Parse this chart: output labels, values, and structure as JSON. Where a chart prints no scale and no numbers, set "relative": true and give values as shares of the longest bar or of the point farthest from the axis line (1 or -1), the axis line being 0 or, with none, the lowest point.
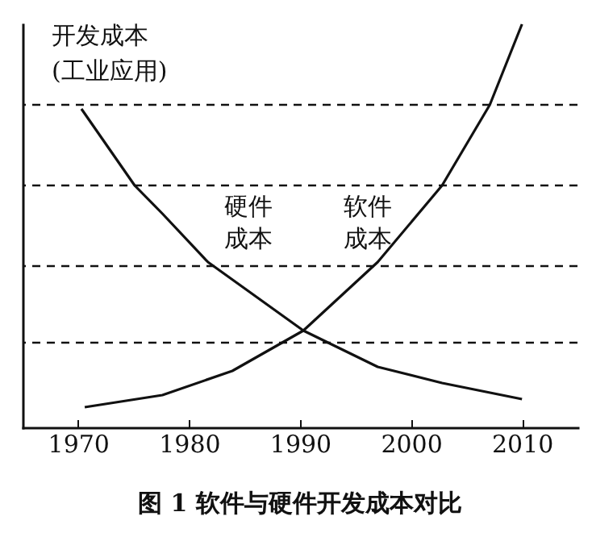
{
  "chart_data": {
    "type": "line",
    "title": "图 1  软件与硬件开发成本对比",
    "ylabel": "开发成本\n(工业应用)",
    "relative": true,
    "xlim": [
      1965,
      2015
    ],
    "xticks": [
      1970,
      1980,
      1990,
      2000,
      2010
    ],
    "series": [
      {
        "name": "硬件成本",
        "color": "#111111",
        "x": [
          1970.3,
          1975.1,
          1977.6,
          1981.7,
          1990.3,
          1997.0,
          2002.8,
          2010.0
        ],
        "values": [
          0.79,
          0.6,
          0.53,
          0.41,
          0.24,
          0.15,
          0.11,
          0.07
        ]
      },
      {
        "name": "软件成本",
        "color": "#111111",
        "x": [
          1970.6,
          1977.6,
          1983.9,
          1990.3,
          1997.0,
          2002.8,
          2007.1,
          2010.0
        ],
        "values": [
          0.05,
          0.08,
          0.14,
          0.24,
          0.41,
          0.6,
          0.8,
          1.0
        ]
      }
    ],
    "ref_lines": [
      {
        "axis": "y",
        "value": 0.8,
        "line_style": "dashed",
        "color": "#111111"
      },
      {
        "axis": "y",
        "value": 0.6,
        "line_style": "dashed",
        "color": "#111111"
      },
      {
        "axis": "y",
        "value": 0.4,
        "line_style": "dashed",
        "color": "#111111"
      },
      {
        "axis": "y",
        "value": 0.21,
        "line_style": "dashed",
        "color": "#111111"
      }
    ],
    "line_style": "solid"
  }
}
